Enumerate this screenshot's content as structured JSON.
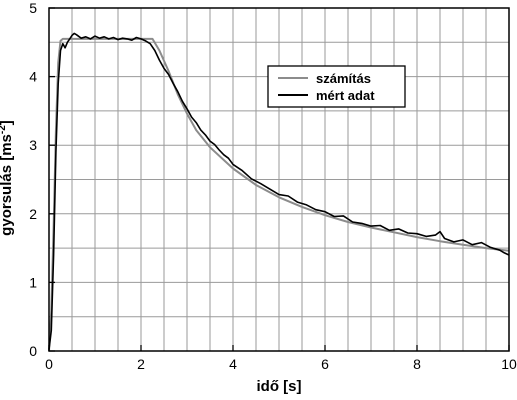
{
  "chart_data": {
    "type": "line",
    "xlabel": "idő [s]",
    "ylabel": "gyorsulás [ms",
    "ylabel_sup": "-2",
    "ylabel_tail": "]",
    "xlim": [
      0,
      10
    ],
    "ylim": [
      0,
      5
    ],
    "x_ticks": [
      0,
      2,
      4,
      6,
      8,
      10
    ],
    "y_ticks": [
      0,
      1,
      2,
      3,
      4,
      5
    ],
    "grid": true,
    "legend_position": "upper-right",
    "series": [
      {
        "name": "számítás",
        "color": "#8c8c8c",
        "x": [
          0,
          0.05,
          0.1,
          0.15,
          0.2,
          0.25,
          0.3,
          2.25,
          2.4,
          2.6,
          2.8,
          3.0,
          3.2,
          3.5,
          4.0,
          4.5,
          5.0,
          5.5,
          6.0,
          6.5,
          7.0,
          7.5,
          8.0,
          8.5,
          9.0,
          9.5,
          10.0
        ],
        "y": [
          0,
          0.6,
          1.8,
          3.2,
          4.2,
          4.52,
          4.55,
          4.55,
          4.38,
          4.08,
          3.74,
          3.46,
          3.22,
          2.97,
          2.66,
          2.42,
          2.24,
          2.1,
          1.98,
          1.88,
          1.8,
          1.73,
          1.66,
          1.6,
          1.55,
          1.5,
          1.46
        ]
      },
      {
        "name": "mért adat",
        "color": "#000000",
        "x": [
          0,
          0.05,
          0.1,
          0.15,
          0.2,
          0.25,
          0.3,
          0.35,
          0.4,
          0.45,
          0.5,
          0.55,
          0.6,
          0.7,
          0.8,
          0.9,
          1.0,
          1.1,
          1.2,
          1.3,
          1.4,
          1.5,
          1.6,
          1.7,
          1.8,
          1.9,
          2.0,
          2.1,
          2.2,
          2.3,
          2.4,
          2.5,
          2.6,
          2.7,
          2.8,
          2.9,
          3.0,
          3.1,
          3.2,
          3.3,
          3.4,
          3.5,
          3.6,
          3.7,
          3.8,
          3.9,
          4.0,
          4.2,
          4.4,
          4.6,
          4.8,
          5.0,
          5.2,
          5.4,
          5.6,
          5.8,
          6.0,
          6.2,
          6.4,
          6.6,
          6.8,
          7.0,
          7.2,
          7.4,
          7.6,
          7.8,
          8.0,
          8.2,
          8.4,
          8.5,
          8.6,
          8.8,
          9.0,
          9.2,
          9.4,
          9.6,
          9.8,
          9.9,
          10.0
        ],
        "y": [
          0.02,
          0.3,
          1.4,
          2.9,
          3.9,
          4.38,
          4.48,
          4.42,
          4.5,
          4.55,
          4.6,
          4.63,
          4.61,
          4.56,
          4.58,
          4.55,
          4.59,
          4.56,
          4.58,
          4.55,
          4.57,
          4.54,
          4.56,
          4.55,
          4.53,
          4.57,
          4.55,
          4.52,
          4.48,
          4.38,
          4.24,
          4.12,
          4.03,
          3.9,
          3.78,
          3.64,
          3.53,
          3.41,
          3.33,
          3.22,
          3.15,
          3.06,
          3.01,
          2.93,
          2.86,
          2.81,
          2.72,
          2.63,
          2.51,
          2.44,
          2.36,
          2.28,
          2.26,
          2.17,
          2.13,
          2.06,
          2.03,
          1.96,
          1.97,
          1.88,
          1.86,
          1.82,
          1.83,
          1.76,
          1.78,
          1.72,
          1.71,
          1.67,
          1.69,
          1.74,
          1.64,
          1.59,
          1.62,
          1.55,
          1.58,
          1.51,
          1.47,
          1.43,
          1.4
        ]
      }
    ]
  }
}
